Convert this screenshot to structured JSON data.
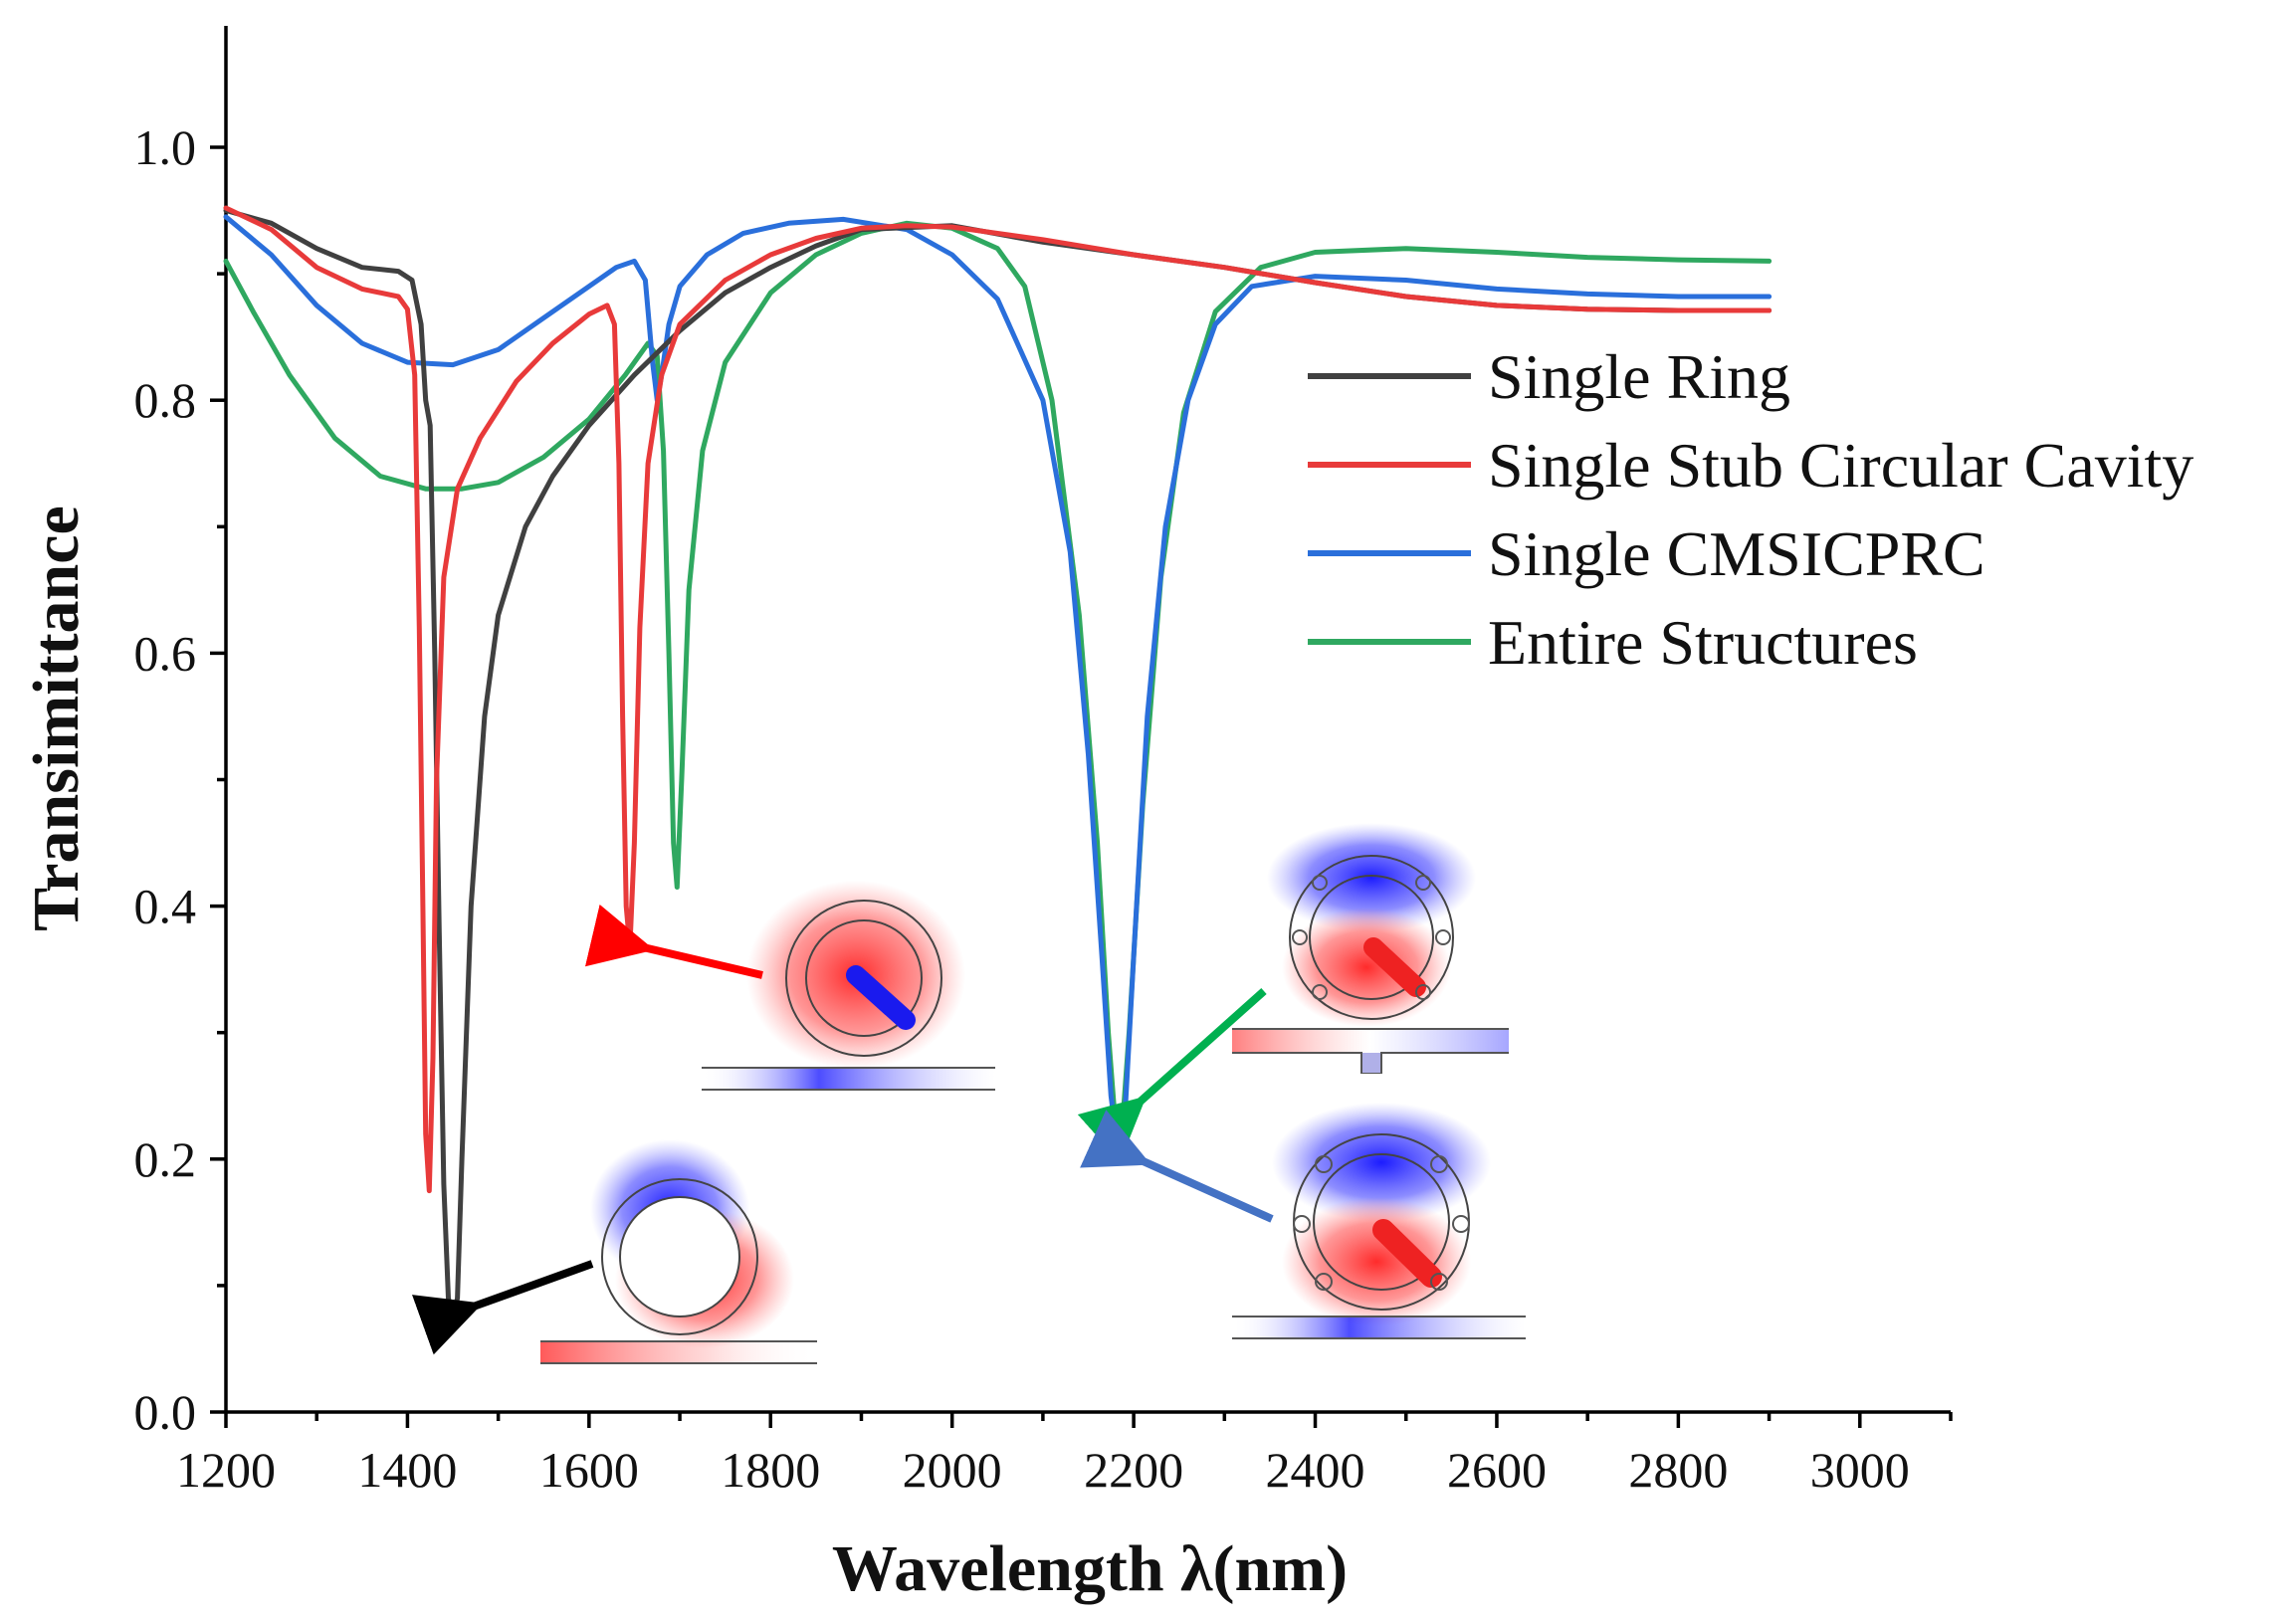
{
  "chart_data": {
    "type": "line",
    "xlabel": "Wavelength λ(nm)",
    "ylabel": "Transimittance",
    "xlim": [
      1200,
      3100
    ],
    "ylim": [
      0.0,
      1.1
    ],
    "x_ticks": [
      "1200",
      "1400",
      "1600",
      "1800",
      "2000",
      "2200",
      "2400",
      "2600",
      "2800",
      "3000"
    ],
    "y_ticks": [
      "0.0",
      "0.2",
      "0.4",
      "0.6",
      "0.8",
      "1.0"
    ],
    "grid": false,
    "legend_position": "right",
    "series": [
      {
        "name": "Single Ring",
        "color": "#404040",
        "points": [
          [
            1200,
            0.95
          ],
          [
            1250,
            0.94
          ],
          [
            1300,
            0.92
          ],
          [
            1350,
            0.905
          ],
          [
            1390,
            0.902
          ],
          [
            1405,
            0.895
          ],
          [
            1415,
            0.86
          ],
          [
            1420,
            0.8
          ],
          [
            1425,
            0.78
          ],
          [
            1430,
            0.6
          ],
          [
            1435,
            0.38
          ],
          [
            1440,
            0.18
          ],
          [
            1445,
            0.09
          ],
          [
            1450,
            0.075
          ],
          [
            1455,
            0.09
          ],
          [
            1460,
            0.2
          ],
          [
            1470,
            0.4
          ],
          [
            1485,
            0.55
          ],
          [
            1500,
            0.63
          ],
          [
            1530,
            0.7
          ],
          [
            1560,
            0.74
          ],
          [
            1600,
            0.78
          ],
          [
            1650,
            0.82
          ],
          [
            1700,
            0.855
          ],
          [
            1750,
            0.885
          ],
          [
            1800,
            0.905
          ],
          [
            1850,
            0.922
          ],
          [
            1900,
            0.935
          ],
          [
            2000,
            0.938
          ],
          [
            2100,
            0.925
          ],
          [
            2200,
            0.915
          ],
          [
            2300,
            0.905
          ],
          [
            2400,
            0.893
          ],
          [
            2500,
            0.882
          ],
          [
            2600,
            0.875
          ],
          [
            2700,
            0.872
          ],
          [
            2800,
            0.871
          ],
          [
            2900,
            0.871
          ]
        ]
      },
      {
        "name": "Single Stub Circular Cavity",
        "color": "#e83a3a",
        "points": [
          [
            1200,
            0.952
          ],
          [
            1250,
            0.935
          ],
          [
            1300,
            0.905
          ],
          [
            1350,
            0.888
          ],
          [
            1390,
            0.882
          ],
          [
            1400,
            0.872
          ],
          [
            1408,
            0.82
          ],
          [
            1413,
            0.62
          ],
          [
            1417,
            0.4
          ],
          [
            1420,
            0.22
          ],
          [
            1424,
            0.175
          ],
          [
            1428,
            0.28
          ],
          [
            1432,
            0.5
          ],
          [
            1440,
            0.66
          ],
          [
            1455,
            0.73
          ],
          [
            1480,
            0.77
          ],
          [
            1520,
            0.815
          ],
          [
            1560,
            0.845
          ],
          [
            1600,
            0.868
          ],
          [
            1620,
            0.875
          ],
          [
            1628,
            0.86
          ],
          [
            1633,
            0.75
          ],
          [
            1637,
            0.55
          ],
          [
            1641,
            0.4
          ],
          [
            1645,
            0.367
          ],
          [
            1650,
            0.45
          ],
          [
            1656,
            0.62
          ],
          [
            1665,
            0.75
          ],
          [
            1680,
            0.82
          ],
          [
            1700,
            0.86
          ],
          [
            1750,
            0.895
          ],
          [
            1800,
            0.915
          ],
          [
            1850,
            0.928
          ],
          [
            1900,
            0.936
          ],
          [
            1950,
            0.938
          ],
          [
            2000,
            0.937
          ],
          [
            2100,
            0.927
          ],
          [
            2200,
            0.915
          ],
          [
            2300,
            0.905
          ],
          [
            2400,
            0.893
          ],
          [
            2500,
            0.882
          ],
          [
            2600,
            0.875
          ],
          [
            2700,
            0.872
          ],
          [
            2800,
            0.871
          ],
          [
            2900,
            0.871
          ]
        ]
      },
      {
        "name": "Single CMSICPRC",
        "color": "#2a6fdb",
        "points": [
          [
            1200,
            0.945
          ],
          [
            1250,
            0.915
          ],
          [
            1300,
            0.875
          ],
          [
            1350,
            0.845
          ],
          [
            1400,
            0.83
          ],
          [
            1450,
            0.828
          ],
          [
            1500,
            0.84
          ],
          [
            1550,
            0.865
          ],
          [
            1600,
            0.89
          ],
          [
            1630,
            0.905
          ],
          [
            1650,
            0.91
          ],
          [
            1662,
            0.895
          ],
          [
            1670,
            0.83
          ],
          [
            1675,
            0.8
          ],
          [
            1680,
            0.82
          ],
          [
            1688,
            0.86
          ],
          [
            1700,
            0.89
          ],
          [
            1730,
            0.915
          ],
          [
            1770,
            0.932
          ],
          [
            1820,
            0.94
          ],
          [
            1880,
            0.943
          ],
          [
            1950,
            0.935
          ],
          [
            2000,
            0.915
          ],
          [
            2050,
            0.88
          ],
          [
            2100,
            0.8
          ],
          [
            2130,
            0.68
          ],
          [
            2150,
            0.52
          ],
          [
            2165,
            0.36
          ],
          [
            2175,
            0.25
          ],
          [
            2183,
            0.205
          ],
          [
            2190,
            0.23
          ],
          [
            2200,
            0.36
          ],
          [
            2215,
            0.55
          ],
          [
            2235,
            0.7
          ],
          [
            2260,
            0.8
          ],
          [
            2290,
            0.86
          ],
          [
            2330,
            0.89
          ],
          [
            2400,
            0.898
          ],
          [
            2500,
            0.895
          ],
          [
            2600,
            0.888
          ],
          [
            2700,
            0.884
          ],
          [
            2800,
            0.882
          ],
          [
            2900,
            0.882
          ]
        ]
      },
      {
        "name": "Entire Structures",
        "color": "#2fa860",
        "points": [
          [
            1200,
            0.91
          ],
          [
            1230,
            0.87
          ],
          [
            1270,
            0.82
          ],
          [
            1320,
            0.77
          ],
          [
            1370,
            0.74
          ],
          [
            1420,
            0.73
          ],
          [
            1460,
            0.73
          ],
          [
            1500,
            0.735
          ],
          [
            1550,
            0.755
          ],
          [
            1600,
            0.785
          ],
          [
            1640,
            0.82
          ],
          [
            1665,
            0.845
          ],
          [
            1675,
            0.835
          ],
          [
            1682,
            0.76
          ],
          [
            1688,
            0.6
          ],
          [
            1693,
            0.45
          ],
          [
            1697,
            0.415
          ],
          [
            1702,
            0.5
          ],
          [
            1710,
            0.65
          ],
          [
            1725,
            0.76
          ],
          [
            1750,
            0.83
          ],
          [
            1800,
            0.885
          ],
          [
            1850,
            0.915
          ],
          [
            1900,
            0.932
          ],
          [
            1950,
            0.94
          ],
          [
            2000,
            0.936
          ],
          [
            2050,
            0.92
          ],
          [
            2080,
            0.89
          ],
          [
            2110,
            0.8
          ],
          [
            2140,
            0.63
          ],
          [
            2160,
            0.45
          ],
          [
            2172,
            0.3
          ],
          [
            2180,
            0.225
          ],
          [
            2187,
            0.22
          ],
          [
            2195,
            0.3
          ],
          [
            2210,
            0.48
          ],
          [
            2230,
            0.66
          ],
          [
            2255,
            0.79
          ],
          [
            2290,
            0.87
          ],
          [
            2340,
            0.905
          ],
          [
            2400,
            0.917
          ],
          [
            2500,
            0.92
          ],
          [
            2600,
            0.917
          ],
          [
            2700,
            0.913
          ],
          [
            2800,
            0.911
          ],
          [
            2900,
            0.91
          ]
        ]
      }
    ],
    "annotations": [
      {
        "name": "single-ring-field",
        "target": [
          1452,
          0.078
        ],
        "arrow_color": "#000000"
      },
      {
        "name": "stub-cavity-field",
        "target": [
          1645,
          0.368
        ],
        "arrow_color": "#ff0000"
      },
      {
        "name": "entire-structures-field",
        "target": [
          2185,
          0.23
        ],
        "arrow_color": "#00b050"
      },
      {
        "name": "cmsicprc-field",
        "target": [
          2183,
          0.205
        ],
        "arrow_color": "#4472c4"
      }
    ]
  }
}
